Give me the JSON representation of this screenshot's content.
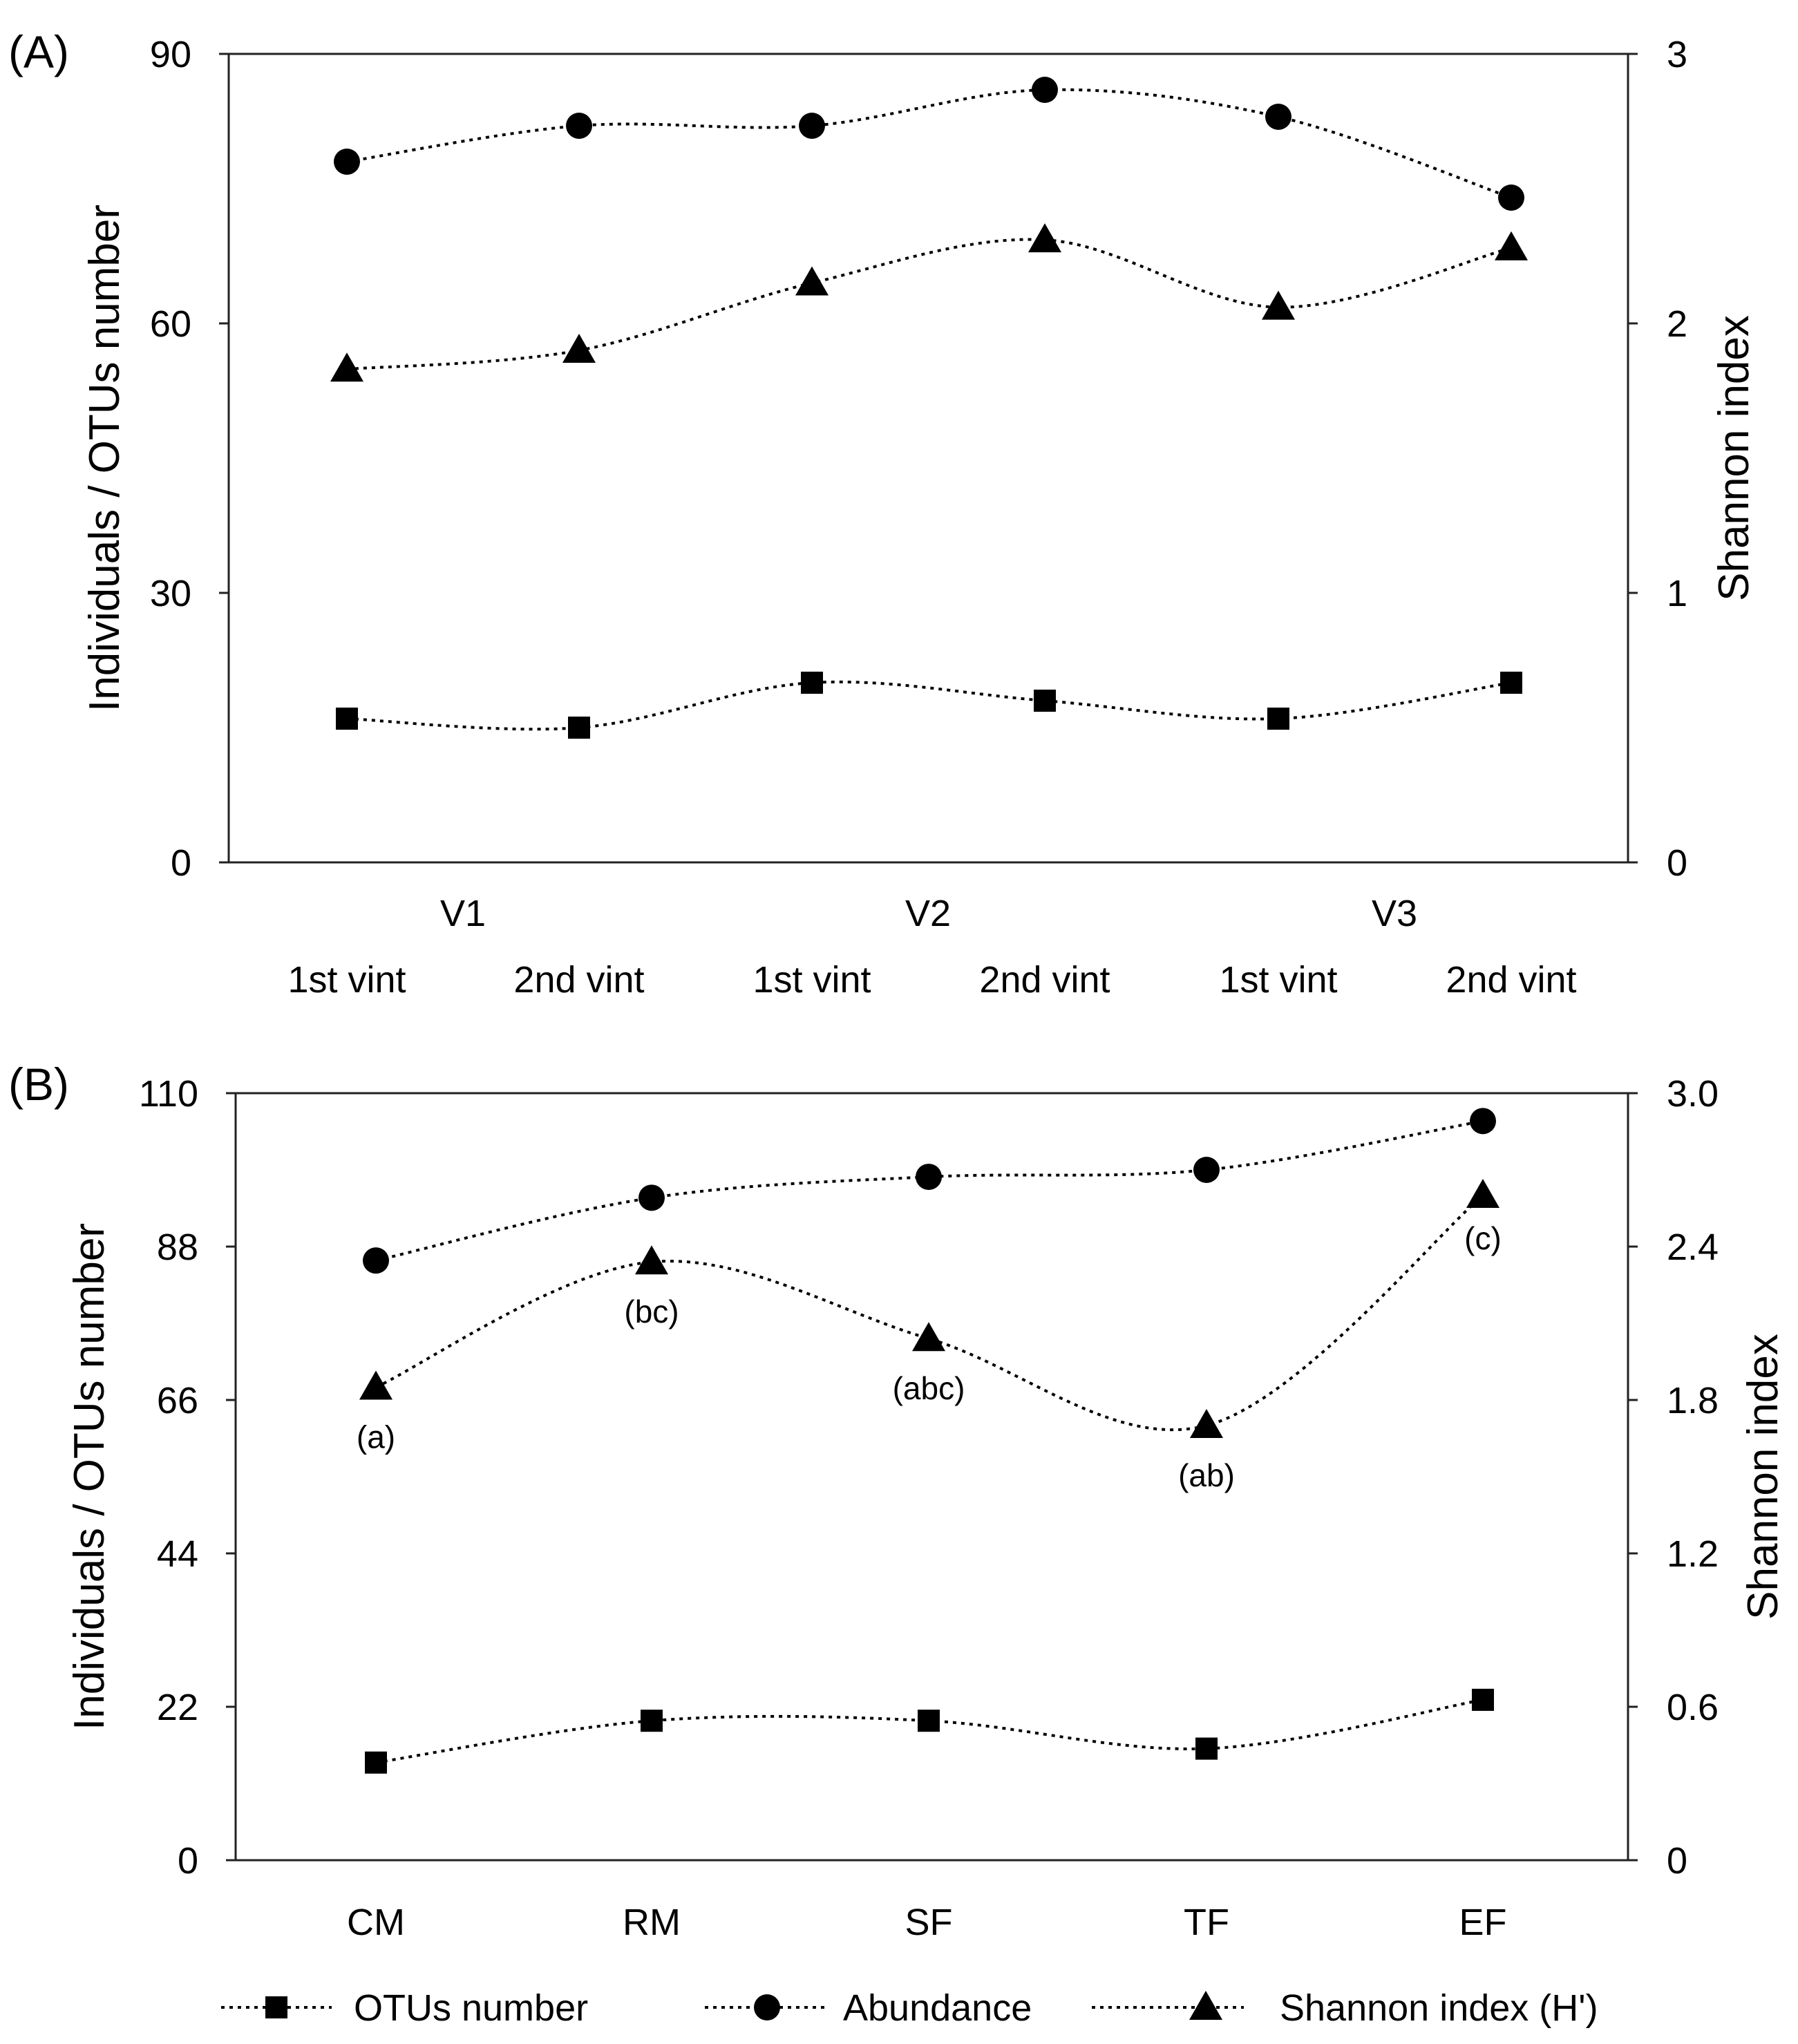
{
  "chart_data": [
    {
      "type": "line",
      "panel_label": "(A)",
      "categories": [
        "1st vint",
        "2nd vint",
        "1st vint",
        "2nd vint",
        "1st vint",
        "2nd vint"
      ],
      "groups": [
        "V1",
        "V2",
        "V3"
      ],
      "ylabel_left": "Individuals / OTUs number",
      "ylabel_right": "Shannon index",
      "ylim_left": [
        0,
        90
      ],
      "ylim_right": [
        0,
        3
      ],
      "yticks_left": [
        "0",
        "30",
        "60",
        "90"
      ],
      "yticks_right": [
        "0",
        "1",
        "2",
        "3"
      ],
      "grid": false,
      "series": [
        {
          "key": "otus",
          "axis": "left",
          "marker": "square",
          "values": [
            16,
            15,
            20,
            18,
            16,
            20
          ]
        },
        {
          "key": "abundance",
          "axis": "left",
          "marker": "circle",
          "values": [
            78,
            82,
            82,
            86,
            83,
            74
          ]
        },
        {
          "key": "shannon",
          "axis": "right",
          "marker": "triangle",
          "values": [
            1.83,
            1.9,
            2.15,
            2.31,
            2.06,
            2.28
          ]
        }
      ]
    },
    {
      "type": "line",
      "panel_label": "(B)",
      "categories": [
        "CM",
        "RM",
        "SF",
        "TF",
        "EF"
      ],
      "ylabel_left": "Individuals / OTUs number",
      "ylabel_right": "Shannon index",
      "ylim_left": [
        0,
        110
      ],
      "ylim_right": [
        0,
        3.0
      ],
      "yticks_left": [
        "0",
        "22",
        "44",
        "66",
        "88",
        "110"
      ],
      "yticks_right": [
        "0",
        "0.6",
        "1.2",
        "1.8",
        "2.4",
        "3.0"
      ],
      "grid": false,
      "series": [
        {
          "key": "otus",
          "axis": "left",
          "marker": "square",
          "values": [
            14,
            20,
            20,
            16,
            23
          ]
        },
        {
          "key": "abundance",
          "axis": "left",
          "marker": "circle",
          "values": [
            86,
            95,
            98,
            99,
            106
          ]
        },
        {
          "key": "shannon",
          "axis": "right",
          "marker": "triangle",
          "values": [
            1.85,
            2.34,
            2.04,
            1.7,
            2.6
          ],
          "annotations": [
            "(a)",
            "(bc)",
            "(abc)",
            "(ab)",
            "(c)"
          ]
        }
      ]
    }
  ],
  "legend": {
    "placement": "bottom",
    "items": [
      {
        "key": "otus",
        "label": "OTUs number",
        "marker": "square"
      },
      {
        "key": "abundance",
        "label": "Abundance",
        "marker": "circle"
      },
      {
        "key": "shannon",
        "label": "Shannon index (H')",
        "marker": "triangle"
      }
    ]
  }
}
